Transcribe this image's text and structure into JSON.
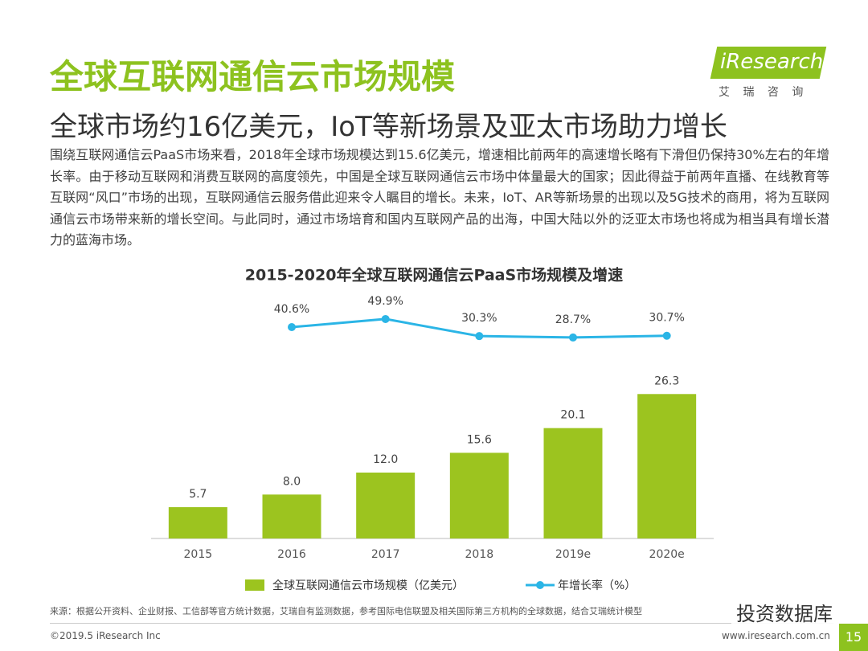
{
  "header": {
    "title": "全球互联网通信云市场规模",
    "subtitle": "全球市场约16亿美元，IoT等新场景及亚太市场助力增长",
    "logo": "iResearch",
    "logo_sub": "艾 瑞 咨 询",
    "paragraph": "围绕互联网通信云PaaS市场来看，2018年全球市场规模达到15.6亿美元，增速相比前两年的高速增长略有下滑但仍保持30%左右的年增长率。由于移动互联网和消费互联网的高度领先，中国是全球互联网通信云市场中体量最大的国家；因此得益于前两年直播、在线教育等互联网“风口”市场的出现，互联网通信云服务借此迎来令人瞩目的增长。未来，IoT、AR等新场景的出现以及5G技术的商用，将为互联网通信云市场带来新的增长空间。与此同时，通过市场培育和国内互联网产品的出海，中国大陆以外的泛亚太市场也将成为相当具有增长潜力的蓝海市场。"
  },
  "chart_data": {
    "type": "bar",
    "title": "2015-2020年全球互联网通信云PaaS市场规模及增速",
    "categories": [
      "2015",
      "2016",
      "2017",
      "2018",
      "2019e",
      "2020e"
    ],
    "series": [
      {
        "name": "全球互联网通信云市场规模（亿美元）",
        "type": "bar",
        "color": "#9cc41f",
        "values": [
          5.7,
          8.0,
          12.0,
          15.6,
          20.1,
          26.3
        ],
        "value_labels": [
          "5.7",
          "8.0",
          "12.0",
          "15.6",
          "20.1",
          "26.3"
        ]
      },
      {
        "name": "年增长率（%）",
        "type": "line",
        "axis": "y2",
        "color": "#2bb5e6",
        "values": [
          null,
          40.6,
          49.9,
          30.3,
          28.7,
          30.7
        ],
        "value_labels": [
          null,
          "40.6%",
          "49.9%",
          "30.3%",
          "28.7%",
          "30.7%"
        ]
      }
    ],
    "ylim": [
      0,
      30
    ],
    "y2lim": [
      0,
      60
    ]
  },
  "footer": {
    "source": "来源：根据公开资料、企业财报、工信部等官方统计数据，艾瑞自有监测数据，参考国际电信联盟及相关国际第三方机构的全球数据，结合艾瑞统计模型",
    "copyright": "©2019.5 iResearch Inc",
    "url": "www.iresearch.com.cn",
    "page": "15",
    "watermark": "投资数据库"
  }
}
